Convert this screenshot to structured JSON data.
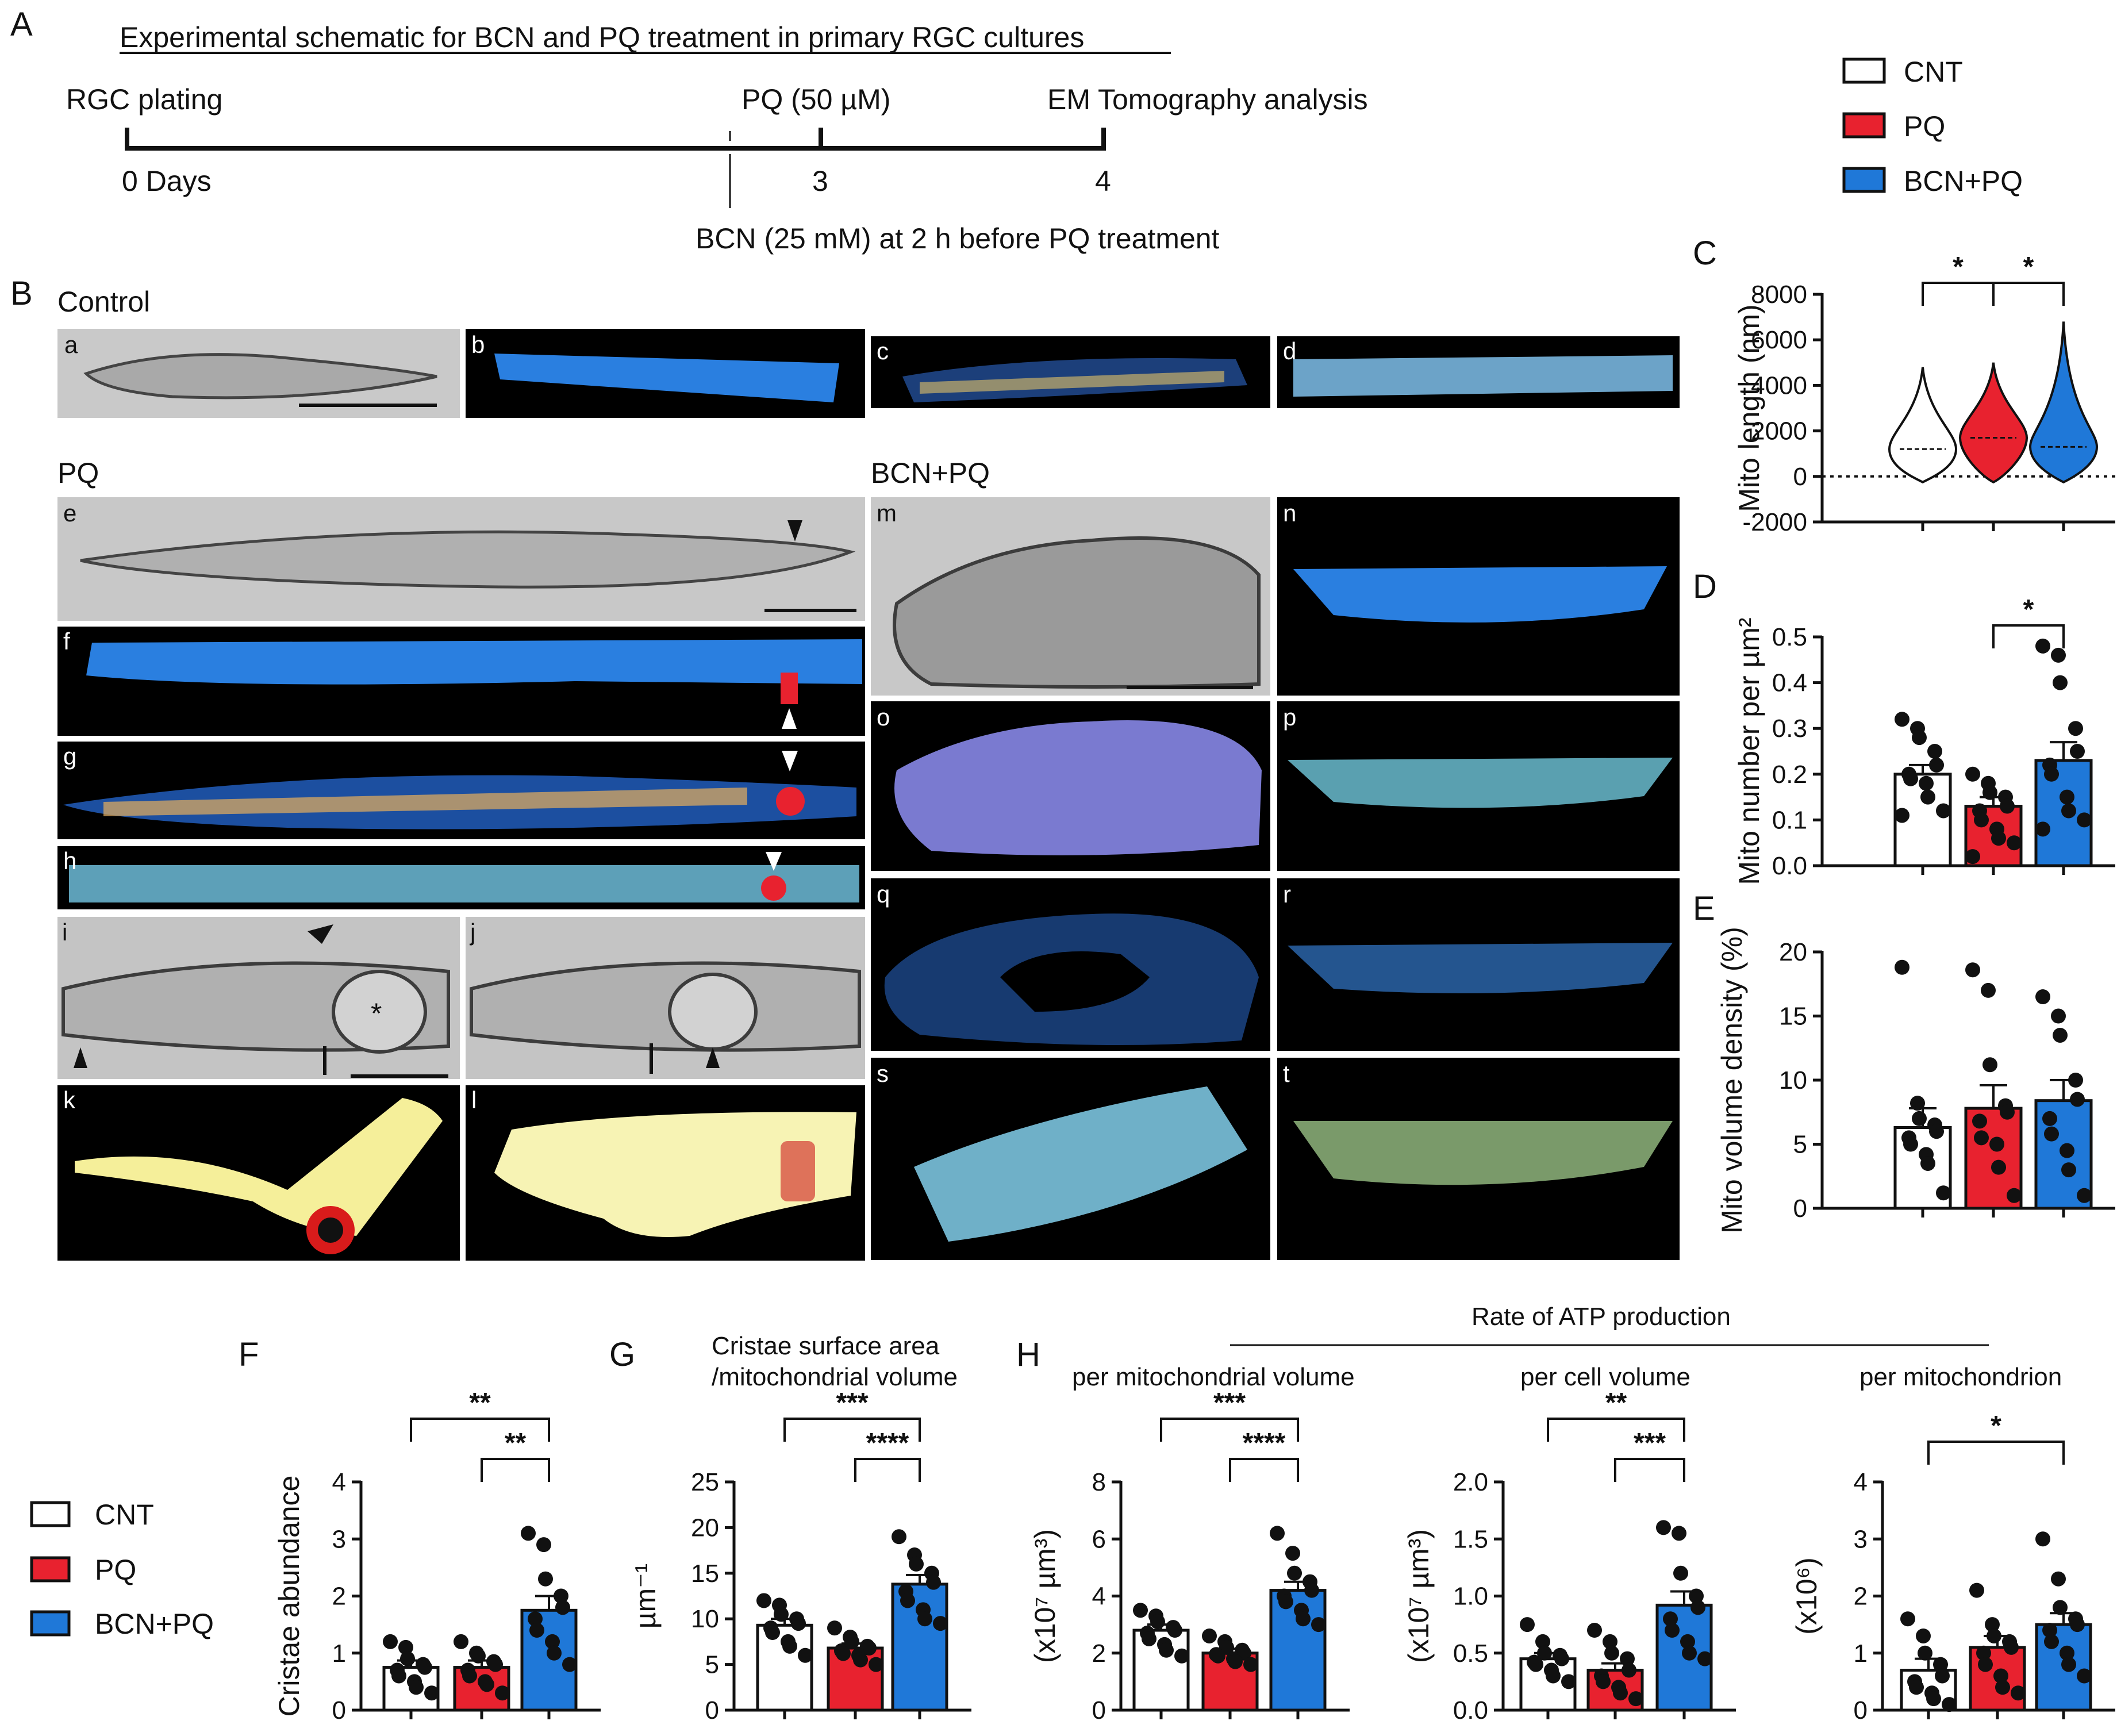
{
  "figure": {
    "panel_letters": {
      "A": "A",
      "B": "B",
      "C": "C",
      "D": "D",
      "E": "E",
      "F": "F",
      "G": "G",
      "H": "H"
    },
    "panel_A": {
      "title": "Experimental schematic for BCN and PQ treatment in primary RGC cultures",
      "events_top": [
        "RGC plating",
        "PQ (50 µM)",
        "EM Tomography analysis"
      ],
      "days": [
        "0 Days",
        "3",
        "4"
      ],
      "note_bottom": "BCN (25 mM) at 2 h before PQ treatment"
    },
    "legend": {
      "items": [
        {
          "label": "CNT",
          "color": "#ffffff"
        },
        {
          "label": "PQ",
          "color": "#e8222f"
        },
        {
          "label": "BCN+PQ",
          "color": "#1f78d8"
        }
      ]
    },
    "panel_B": {
      "section_control": "Control",
      "section_pq": "PQ",
      "section_bcnpq": "BCN+PQ",
      "sub": [
        "a",
        "b",
        "c",
        "d",
        "e",
        "f",
        "g",
        "h",
        "i",
        "j",
        "k",
        "l",
        "m",
        "n",
        "o",
        "p",
        "q",
        "r",
        "s",
        "t"
      ],
      "asterisk": "*"
    },
    "H_header": "Rate of ATP production",
    "G_title_1": "Cristae surface area",
    "G_title_2": "/mitochondrial volume",
    "H_sub": [
      "per mitochondrial volume",
      "per cell volume",
      "per mitochondrion"
    ]
  },
  "colors": {
    "cnt": "#ffffff",
    "pq": "#e8222f",
    "bcn": "#1f78d8",
    "em_bg": "#000000",
    "mito_blue": "#2a7fe0"
  },
  "chart_data": [
    {
      "id": "C",
      "type": "violin",
      "ylabel": "Mito length (nm)",
      "ylim": [
        -2000,
        8000
      ],
      "yticks": [
        8000,
        6000,
        4000,
        2000,
        0,
        -2000
      ],
      "groups": [
        "CNT",
        "PQ",
        "BCN+PQ"
      ],
      "medians": [
        1200,
        1700,
        1300
      ],
      "maxima": [
        4800,
        5000,
        6800
      ],
      "significance": [
        {
          "pair": [
            0,
            1
          ],
          "label": "*"
        },
        {
          "pair": [
            1,
            2
          ],
          "label": "*"
        }
      ]
    },
    {
      "id": "D",
      "type": "bar",
      "ylabel": "Mito number per µm²",
      "ylim": [
        0,
        0.5
      ],
      "yticks": [
        0.5,
        0.4,
        0.3,
        0.2,
        0.1,
        0.0
      ],
      "tick_labels": [
        "0.5",
        "0.4",
        "0.3",
        "0.2",
        "0.1",
        "0.0"
      ],
      "groups": [
        "CNT",
        "PQ",
        "BCN+PQ"
      ],
      "means": [
        0.2,
        0.13,
        0.23
      ],
      "sem": [
        0.02,
        0.02,
        0.04
      ],
      "points": [
        [
          0.32,
          0.3,
          0.28,
          0.25,
          0.22,
          0.2,
          0.19,
          0.18,
          0.15,
          0.12,
          0.11
        ],
        [
          0.2,
          0.18,
          0.16,
          0.15,
          0.13,
          0.12,
          0.1,
          0.08,
          0.06,
          0.05,
          0.02
        ],
        [
          0.48,
          0.46,
          0.4,
          0.3,
          0.25,
          0.22,
          0.2,
          0.15,
          0.12,
          0.1,
          0.08
        ]
      ],
      "significance": [
        {
          "pair": [
            1,
            2
          ],
          "label": "*"
        }
      ]
    },
    {
      "id": "E",
      "type": "bar",
      "ylabel": "Mito volume density (%)",
      "ylim": [
        0,
        20
      ],
      "yticks": [
        20,
        15,
        10,
        5,
        0
      ],
      "tick_labels": [
        "20",
        "15",
        "10",
        "5",
        "0"
      ],
      "groups": [
        "CNT",
        "PQ",
        "BCN+PQ"
      ],
      "means": [
        6.3,
        7.8,
        8.4
      ],
      "sem": [
        1.5,
        1.8,
        1.6
      ],
      "points": [
        [
          18.8,
          8.2,
          7.0,
          6.5,
          6.0,
          5.5,
          5.0,
          4.2,
          3.5,
          1.2
        ],
        [
          18.6,
          17.0,
          11.2,
          8.0,
          7.5,
          6.8,
          5.5,
          5.0,
          3.2,
          1.0
        ],
        [
          16.5,
          15.0,
          13.5,
          10.0,
          8.5,
          7.0,
          5.8,
          4.5,
          3.0,
          1.0
        ]
      ],
      "significance": []
    },
    {
      "id": "F",
      "type": "bar",
      "ylabel": "Cristae abundance",
      "ylim": [
        0,
        4
      ],
      "yticks": [
        4,
        3,
        2,
        1,
        0
      ],
      "tick_labels": [
        "4",
        "3",
        "2",
        "1",
        "0"
      ],
      "groups": [
        "CNT",
        "PQ",
        "BCN+PQ"
      ],
      "means": [
        0.75,
        0.75,
        1.75
      ],
      "sem": [
        0.12,
        0.12,
        0.25
      ],
      "points": [
        [
          1.2,
          1.1,
          0.9,
          0.8,
          0.75,
          0.7,
          0.6,
          0.5,
          0.4,
          0.3
        ],
        [
          1.2,
          1.0,
          0.95,
          0.85,
          0.8,
          0.7,
          0.6,
          0.5,
          0.45,
          0.3
        ],
        [
          3.1,
          2.9,
          2.3,
          2.0,
          1.8,
          1.6,
          1.4,
          1.2,
          1.0,
          0.8
        ]
      ],
      "significance": [
        {
          "pair": [
            0,
            2
          ],
          "label": "**"
        },
        {
          "pair": [
            1,
            2
          ],
          "label": "**"
        }
      ]
    },
    {
      "id": "G",
      "type": "bar",
      "ylabel": "µm⁻¹",
      "ylim": [
        0,
        25
      ],
      "yticks": [
        25,
        20,
        15,
        10,
        5,
        0
      ],
      "tick_labels": [
        "25",
        "20",
        "15",
        "10",
        "5",
        "0"
      ],
      "groups": [
        "CNT",
        "PQ",
        "BCN+PQ"
      ],
      "means": [
        9.3,
        6.8,
        13.8
      ],
      "sem": [
        0.7,
        0.5,
        1.0
      ],
      "points": [
        [
          12.0,
          11.5,
          10.5,
          10.0,
          9.5,
          9.0,
          8.5,
          7.5,
          7.0,
          6.0
        ],
        [
          9.0,
          8.0,
          7.5,
          7.0,
          6.8,
          6.5,
          6.2,
          6.0,
          5.5,
          5.0
        ],
        [
          19.0,
          17.0,
          16.0,
          15.0,
          14.0,
          13.0,
          12.0,
          11.0,
          10.0,
          9.5
        ]
      ],
      "significance": [
        {
          "pair": [
            0,
            2
          ],
          "label": "***"
        },
        {
          "pair": [
            1,
            2
          ],
          "label": "****"
        }
      ]
    },
    {
      "id": "H1",
      "type": "bar",
      "ylabel": "(x10⁷ µm³)",
      "ylim": [
        0,
        8
      ],
      "yticks": [
        8,
        6,
        4,
        2,
        0
      ],
      "tick_labels": [
        "8",
        "6",
        "4",
        "2",
        "0"
      ],
      "groups": [
        "CNT",
        "PQ",
        "BCN+PQ"
      ],
      "means": [
        2.8,
        2.0,
        4.2
      ],
      "sem": [
        0.2,
        0.15,
        0.3
      ],
      "points": [
        [
          3.5,
          3.3,
          3.1,
          2.9,
          2.8,
          2.7,
          2.5,
          2.3,
          2.1,
          1.9
        ],
        [
          2.6,
          2.4,
          2.2,
          2.1,
          2.0,
          1.95,
          1.9,
          1.8,
          1.7,
          1.6
        ],
        [
          6.2,
          5.5,
          4.8,
          4.5,
          4.2,
          4.0,
          3.8,
          3.5,
          3.2,
          3.0
        ]
      ],
      "significance": [
        {
          "pair": [
            0,
            2
          ],
          "label": "***"
        },
        {
          "pair": [
            1,
            2
          ],
          "label": "****"
        }
      ]
    },
    {
      "id": "H2",
      "type": "bar",
      "ylabel": "(x10⁷ µm³)",
      "ylim": [
        0,
        2.0
      ],
      "yticks": [
        2.0,
        1.5,
        1.0,
        0.5,
        0.0
      ],
      "tick_labels": [
        "2.0",
        "1.5",
        "1.0",
        "0.5",
        "0.0"
      ],
      "groups": [
        "CNT",
        "PQ",
        "BCN+PQ"
      ],
      "means": [
        0.45,
        0.35,
        0.92
      ],
      "sem": [
        0.05,
        0.06,
        0.12
      ],
      "points": [
        [
          0.75,
          0.6,
          0.5,
          0.48,
          0.45,
          0.42,
          0.4,
          0.35,
          0.3,
          0.25
        ],
        [
          0.7,
          0.6,
          0.5,
          0.45,
          0.35,
          0.3,
          0.25,
          0.2,
          0.15,
          0.1
        ],
        [
          1.6,
          1.55,
          1.2,
          1.0,
          0.9,
          0.8,
          0.7,
          0.6,
          0.5,
          0.45
        ]
      ],
      "significance": [
        {
          "pair": [
            0,
            2
          ],
          "label": "**"
        },
        {
          "pair": [
            1,
            2
          ],
          "label": "***"
        }
      ]
    },
    {
      "id": "H3",
      "type": "bar",
      "ylabel": "(x10⁶)",
      "ylim": [
        0,
        4
      ],
      "yticks": [
        4,
        3,
        2,
        1,
        0
      ],
      "tick_labels": [
        "4",
        "3",
        "2",
        "1",
        "0"
      ],
      "groups": [
        "CNT",
        "PQ",
        "BCN+PQ"
      ],
      "means": [
        0.7,
        1.1,
        1.5
      ],
      "sem": [
        0.2,
        0.2,
        0.2
      ],
      "points": [
        [
          1.6,
          1.3,
          1.0,
          0.8,
          0.6,
          0.5,
          0.4,
          0.3,
          0.2,
          0.1
        ],
        [
          2.1,
          1.5,
          1.3,
          1.2,
          1.1,
          1.0,
          0.8,
          0.6,
          0.4,
          0.3
        ],
        [
          3.0,
          2.3,
          1.8,
          1.6,
          1.5,
          1.4,
          1.2,
          1.0,
          0.8,
          0.6
        ]
      ],
      "significance": [
        {
          "pair": [
            0,
            2
          ],
          "label": "*"
        }
      ]
    }
  ]
}
